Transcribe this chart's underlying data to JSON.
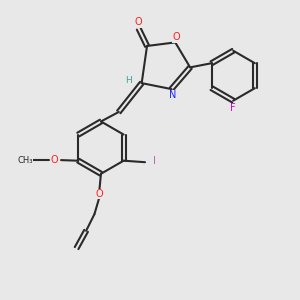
{
  "bg_color": "#e8e8e8",
  "bond_color": "#2a2a2a",
  "atom_colors": {
    "O": "#ff2020",
    "N": "#2020ff",
    "F": "#cc00cc",
    "I": "#b060b0",
    "H": "#40a0a0"
  }
}
